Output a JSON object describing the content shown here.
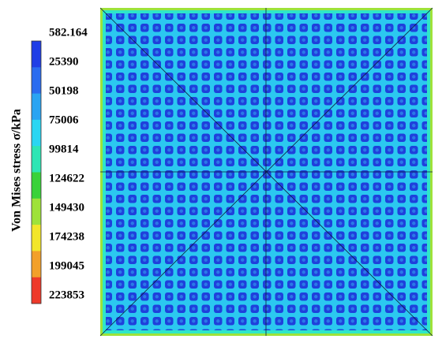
{
  "chart_data": {
    "type": "contour",
    "colorbar_title": "Von Mises stress σ/kPa",
    "colorbar_ticks": [
      582.164,
      25390,
      50198,
      75006,
      99814,
      124622,
      149430,
      174238,
      199045,
      223853
    ],
    "colors": [
      "#1f3ee6",
      "#2a6cf0",
      "#2aa4f2",
      "#2ad6f2",
      "#2ee6b4",
      "#3ad23a",
      "#9ee23a",
      "#f2e62a",
      "#f2a02a",
      "#ee3a2a"
    ]
  }
}
